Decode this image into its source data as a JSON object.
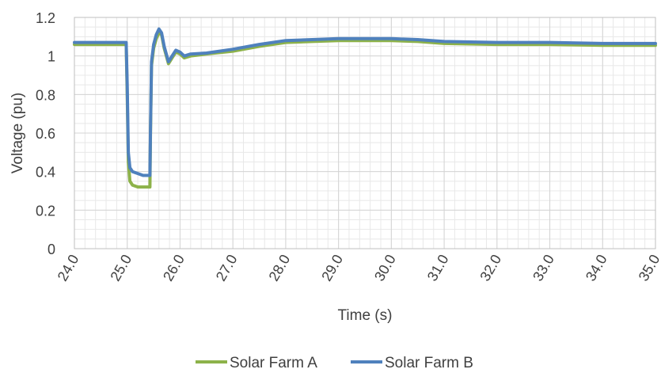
{
  "chart_data": {
    "type": "line",
    "title": "",
    "xlabel": "Time (s)",
    "ylabel": "Voltage (pu)",
    "xlim": [
      24.0,
      35.0
    ],
    "ylim": [
      0,
      1.2
    ],
    "x_ticks": [
      "24.0",
      "25.0",
      "26.0",
      "27.0",
      "28.0",
      "29.0",
      "30.0",
      "31.0",
      "32.0",
      "33.0",
      "34.0",
      "35.0"
    ],
    "y_ticks": [
      "0",
      "0.2",
      "0.4",
      "0.6",
      "0.8",
      "1",
      "1.2"
    ],
    "grid": true,
    "legend_position": "bottom",
    "series": [
      {
        "name": "Solar Farm A",
        "color": "#8db24a",
        "x": [
          24.0,
          24.98,
          25.0,
          25.02,
          25.05,
          25.1,
          25.2,
          25.3,
          25.43,
          25.44,
          25.46,
          25.5,
          25.55,
          25.6,
          25.65,
          25.7,
          25.78,
          25.85,
          25.92,
          26.0,
          26.08,
          26.2,
          26.5,
          27.0,
          27.5,
          28.0,
          28.5,
          29.0,
          30.0,
          30.5,
          31.0,
          32.0,
          33.0,
          34.0,
          35.0
        ],
        "y": [
          1.06,
          1.06,
          0.8,
          0.45,
          0.35,
          0.33,
          0.32,
          0.32,
          0.32,
          0.6,
          0.95,
          1.04,
          1.09,
          1.12,
          1.11,
          1.04,
          0.96,
          0.99,
          1.02,
          1.01,
          0.99,
          1.0,
          1.01,
          1.025,
          1.05,
          1.07,
          1.075,
          1.08,
          1.08,
          1.075,
          1.065,
          1.06,
          1.06,
          1.055,
          1.055
        ]
      },
      {
        "name": "Solar Farm B",
        "color": "#4f81bd",
        "x": [
          24.0,
          24.98,
          25.0,
          25.02,
          25.05,
          25.1,
          25.2,
          25.3,
          25.43,
          25.44,
          25.46,
          25.5,
          25.55,
          25.6,
          25.65,
          25.7,
          25.78,
          25.85,
          25.92,
          26.0,
          26.08,
          26.2,
          26.5,
          27.0,
          27.5,
          28.0,
          28.5,
          29.0,
          30.0,
          30.5,
          31.0,
          32.0,
          33.0,
          34.0,
          35.0
        ],
        "y": [
          1.07,
          1.07,
          0.85,
          0.5,
          0.42,
          0.4,
          0.39,
          0.38,
          0.38,
          0.62,
          0.97,
          1.06,
          1.11,
          1.14,
          1.12,
          1.05,
          0.97,
          1.0,
          1.03,
          1.02,
          1.0,
          1.01,
          1.015,
          1.035,
          1.06,
          1.08,
          1.085,
          1.09,
          1.09,
          1.085,
          1.075,
          1.07,
          1.07,
          1.065,
          1.065
        ]
      }
    ]
  }
}
